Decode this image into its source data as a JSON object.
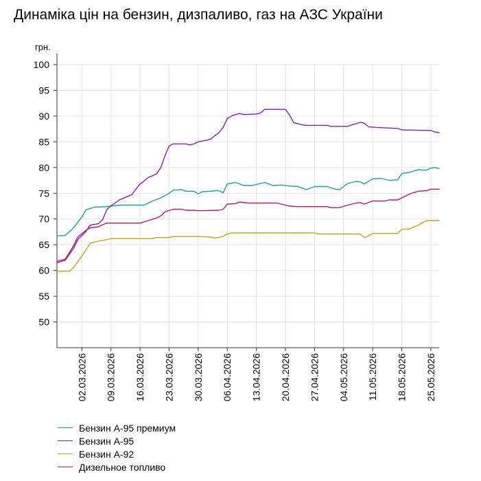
{
  "chart_data": {
    "type": "line",
    "title": "Динаміка цін на бензин, дизпаливо, газ на АЗС України",
    "ylabel": "грн.",
    "xlabel": "",
    "ylim": [
      45,
      100
    ],
    "yticks": [
      50,
      55,
      60,
      65,
      70,
      75,
      80,
      85,
      90,
      95,
      100
    ],
    "x_range": [
      "2026-02-24",
      "2026-05-27"
    ],
    "xticks": [
      "02.03.2026",
      "09.03.2026",
      "16.03.2026",
      "23.03.2026",
      "30.03.2026",
      "06.04.2026",
      "13.04.2026",
      "20.04.2026",
      "27.04.2026",
      "04.05.2026",
      "11.05.2026",
      "18.05.2026",
      "25.05.2026"
    ],
    "grid": "vertical and horizontal",
    "legend_position": "bottom-left",
    "series": [
      {
        "name": "Бензин А-95 премиум",
        "color": "#1aa389",
        "points": [
          [
            "2026-02-24",
            66.7
          ],
          [
            "2026-02-26",
            66.8
          ],
          [
            "2026-02-28",
            68.3
          ],
          [
            "2026-03-02",
            70.4
          ],
          [
            "2026-03-03",
            71.8
          ],
          [
            "2026-03-05",
            72.3
          ],
          [
            "2026-03-08",
            72.4
          ],
          [
            "2026-03-11",
            72.7
          ],
          [
            "2026-03-17",
            72.7
          ],
          [
            "2026-03-19",
            73.5
          ],
          [
            "2026-03-21",
            74.1
          ],
          [
            "2026-03-23",
            75.0
          ],
          [
            "2026-03-24",
            75.6
          ],
          [
            "2026-03-26",
            75.7
          ],
          [
            "2026-03-27",
            75.4
          ],
          [
            "2026-03-29",
            75.4
          ],
          [
            "2026-03-30",
            74.9
          ],
          [
            "2026-03-31",
            75.3
          ],
          [
            "2026-04-02",
            75.4
          ],
          [
            "2026-04-03",
            75.5
          ],
          [
            "2026-04-04",
            75.5
          ],
          [
            "2026-04-05",
            75.1
          ],
          [
            "2026-04-06",
            76.8
          ],
          [
            "2026-04-08",
            77.1
          ],
          [
            "2026-04-10",
            76.5
          ],
          [
            "2026-04-12",
            76.5
          ],
          [
            "2026-04-14",
            76.9
          ],
          [
            "2026-04-15",
            77.1
          ],
          [
            "2026-04-17",
            76.5
          ],
          [
            "2026-04-19",
            76.6
          ],
          [
            "2026-04-21",
            76.4
          ],
          [
            "2026-04-23",
            76.3
          ],
          [
            "2026-04-25",
            75.7
          ],
          [
            "2026-04-27",
            76.3
          ],
          [
            "2026-04-30",
            76.3
          ],
          [
            "2026-05-02",
            75.8
          ],
          [
            "2026-05-03",
            75.7
          ],
          [
            "2026-05-05",
            76.9
          ],
          [
            "2026-05-07",
            77.3
          ],
          [
            "2026-05-08",
            77.2
          ],
          [
            "2026-05-09",
            76.8
          ],
          [
            "2026-05-11",
            77.8
          ],
          [
            "2026-05-13",
            77.9
          ],
          [
            "2026-05-15",
            77.5
          ],
          [
            "2026-05-17",
            77.6
          ],
          [
            "2026-05-18",
            78.8
          ],
          [
            "2026-05-20",
            79.1
          ],
          [
            "2026-05-22",
            79.6
          ],
          [
            "2026-05-23",
            79.5
          ],
          [
            "2026-05-24",
            79.5
          ],
          [
            "2026-05-25",
            79.9
          ],
          [
            "2026-05-26",
            80.0
          ],
          [
            "2026-05-27",
            79.8
          ]
        ]
      },
      {
        "name": "Бензин А-95",
        "color": "#c2185b",
        "points": [
          [
            "2026-02-24",
            61.8
          ],
          [
            "2026-02-26",
            62.2
          ],
          [
            "2026-02-28",
            64.8
          ],
          [
            "2026-03-01",
            66.5
          ],
          [
            "2026-03-03",
            67.8
          ],
          [
            "2026-03-04",
            68.3
          ],
          [
            "2026-03-06",
            68.5
          ],
          [
            "2026-03-07",
            68.9
          ],
          [
            "2026-03-08",
            69.2
          ],
          [
            "2026-03-10",
            69.2
          ],
          [
            "2026-03-16",
            69.2
          ],
          [
            "2026-03-18",
            69.7
          ],
          [
            "2026-03-20",
            70.2
          ],
          [
            "2026-03-21",
            70.6
          ],
          [
            "2026-03-22",
            71.4
          ],
          [
            "2026-03-24",
            71.9
          ],
          [
            "2026-03-26",
            71.9
          ],
          [
            "2026-03-27",
            71.7
          ],
          [
            "2026-03-29",
            71.7
          ],
          [
            "2026-03-30",
            71.6
          ],
          [
            "2026-04-04",
            71.7
          ],
          [
            "2026-04-05",
            71.9
          ],
          [
            "2026-04-06",
            72.9
          ],
          [
            "2026-04-08",
            73.0
          ],
          [
            "2026-04-09",
            73.3
          ],
          [
            "2026-04-11",
            73.1
          ],
          [
            "2026-04-18",
            73.1
          ],
          [
            "2026-04-19",
            72.9
          ],
          [
            "2026-04-21",
            72.5
          ],
          [
            "2026-04-23",
            72.4
          ],
          [
            "2026-04-30",
            72.4
          ],
          [
            "2026-05-01",
            72.2
          ],
          [
            "2026-05-03",
            72.2
          ],
          [
            "2026-05-05",
            72.7
          ],
          [
            "2026-05-07",
            73.1
          ],
          [
            "2026-05-08",
            73.2
          ],
          [
            "2026-05-09",
            72.9
          ],
          [
            "2026-05-11",
            73.5
          ],
          [
            "2026-05-14",
            73.5
          ],
          [
            "2026-05-15",
            73.7
          ],
          [
            "2026-05-17",
            73.7
          ],
          [
            "2026-05-18",
            74.1
          ],
          [
            "2026-05-20",
            74.9
          ],
          [
            "2026-05-22",
            75.4
          ],
          [
            "2026-05-24",
            75.5
          ],
          [
            "2026-05-25",
            75.8
          ],
          [
            "2026-05-27",
            75.8
          ]
        ]
      },
      {
        "name": "Бензин А-92",
        "color": "#c9a020",
        "points": [
          [
            "2026-02-24",
            59.8
          ],
          [
            "2026-02-27",
            59.9
          ],
          [
            "2026-02-28",
            60.6
          ],
          [
            "2026-03-02",
            62.8
          ],
          [
            "2026-03-03",
            64.0
          ],
          [
            "2026-03-04",
            65.3
          ],
          [
            "2026-03-06",
            65.7
          ],
          [
            "2026-03-08",
            66.0
          ],
          [
            "2026-03-09",
            66.2
          ],
          [
            "2026-03-19",
            66.2
          ],
          [
            "2026-03-20",
            66.4
          ],
          [
            "2026-03-23",
            66.4
          ],
          [
            "2026-03-24",
            66.6
          ],
          [
            "2026-03-30",
            66.6
          ],
          [
            "2026-04-02",
            66.5
          ],
          [
            "2026-04-03",
            66.3
          ],
          [
            "2026-04-05",
            66.6
          ],
          [
            "2026-04-06",
            67.1
          ],
          [
            "2026-04-07",
            67.3
          ],
          [
            "2026-04-27",
            67.3
          ],
          [
            "2026-04-28",
            67.1
          ],
          [
            "2026-05-08",
            67.1
          ],
          [
            "2026-05-09",
            66.4
          ],
          [
            "2026-05-10",
            66.7
          ],
          [
            "2026-05-11",
            67.2
          ],
          [
            "2026-05-17",
            67.2
          ],
          [
            "2026-05-18",
            68.0
          ],
          [
            "2026-05-20",
            68.1
          ],
          [
            "2026-05-21",
            68.5
          ],
          [
            "2026-05-22",
            68.8
          ],
          [
            "2026-05-23",
            69.3
          ],
          [
            "2026-05-24",
            69.7
          ],
          [
            "2026-05-27",
            69.7
          ]
        ]
      },
      {
        "name": "Дизельное топливо",
        "color": "#7b1fc6",
        "points": [
          [
            "2026-02-24",
            61.5
          ],
          [
            "2026-02-26",
            62.0
          ],
          [
            "2026-02-28",
            64.3
          ],
          [
            "2026-03-01",
            66.0
          ],
          [
            "2026-03-03",
            67.6
          ],
          [
            "2026-03-04",
            68.8
          ],
          [
            "2026-03-06",
            69.1
          ],
          [
            "2026-03-07",
            69.9
          ],
          [
            "2026-03-08",
            71.8
          ],
          [
            "2026-03-09",
            72.6
          ],
          [
            "2026-03-10",
            73.1
          ],
          [
            "2026-03-11",
            73.7
          ],
          [
            "2026-03-13",
            74.4
          ],
          [
            "2026-03-14",
            74.7
          ],
          [
            "2026-03-15",
            75.8
          ],
          [
            "2026-03-16",
            76.8
          ],
          [
            "2026-03-17",
            77.4
          ],
          [
            "2026-03-18",
            78.1
          ],
          [
            "2026-03-19",
            78.4
          ],
          [
            "2026-03-20",
            78.8
          ],
          [
            "2026-03-21",
            80.0
          ],
          [
            "2026-03-22",
            82.3
          ],
          [
            "2026-03-23",
            84.2
          ],
          [
            "2026-03-24",
            84.6
          ],
          [
            "2026-03-27",
            84.6
          ],
          [
            "2026-03-28",
            84.4
          ],
          [
            "2026-03-29",
            84.6
          ],
          [
            "2026-03-30",
            85.0
          ],
          [
            "2026-04-01",
            85.3
          ],
          [
            "2026-04-02",
            85.5
          ],
          [
            "2026-04-03",
            86.2
          ],
          [
            "2026-04-04",
            86.8
          ],
          [
            "2026-04-05",
            87.8
          ],
          [
            "2026-04-06",
            89.5
          ],
          [
            "2026-04-07",
            90.0
          ],
          [
            "2026-04-08",
            90.3
          ],
          [
            "2026-04-09",
            90.5
          ],
          [
            "2026-04-10",
            90.3
          ],
          [
            "2026-04-13",
            90.4
          ],
          [
            "2026-04-14",
            90.6
          ],
          [
            "2026-04-15",
            91.3
          ],
          [
            "2026-04-20",
            91.3
          ],
          [
            "2026-04-21",
            90.2
          ],
          [
            "2026-04-22",
            88.7
          ],
          [
            "2026-04-23",
            88.5
          ],
          [
            "2026-04-24",
            88.3
          ],
          [
            "2026-04-25",
            88.2
          ],
          [
            "2026-04-30",
            88.2
          ],
          [
            "2026-05-01",
            88.0
          ],
          [
            "2026-05-05",
            88.0
          ],
          [
            "2026-05-06",
            88.3
          ],
          [
            "2026-05-07",
            88.5
          ],
          [
            "2026-05-08",
            88.8
          ],
          [
            "2026-05-09",
            88.6
          ],
          [
            "2026-05-10",
            87.9
          ],
          [
            "2026-05-12",
            87.8
          ],
          [
            "2026-05-14",
            87.7
          ],
          [
            "2026-05-17",
            87.6
          ],
          [
            "2026-05-18",
            87.3
          ],
          [
            "2026-05-25",
            87.2
          ],
          [
            "2026-05-26",
            86.9
          ],
          [
            "2026-05-27",
            86.8
          ]
        ]
      }
    ]
  }
}
